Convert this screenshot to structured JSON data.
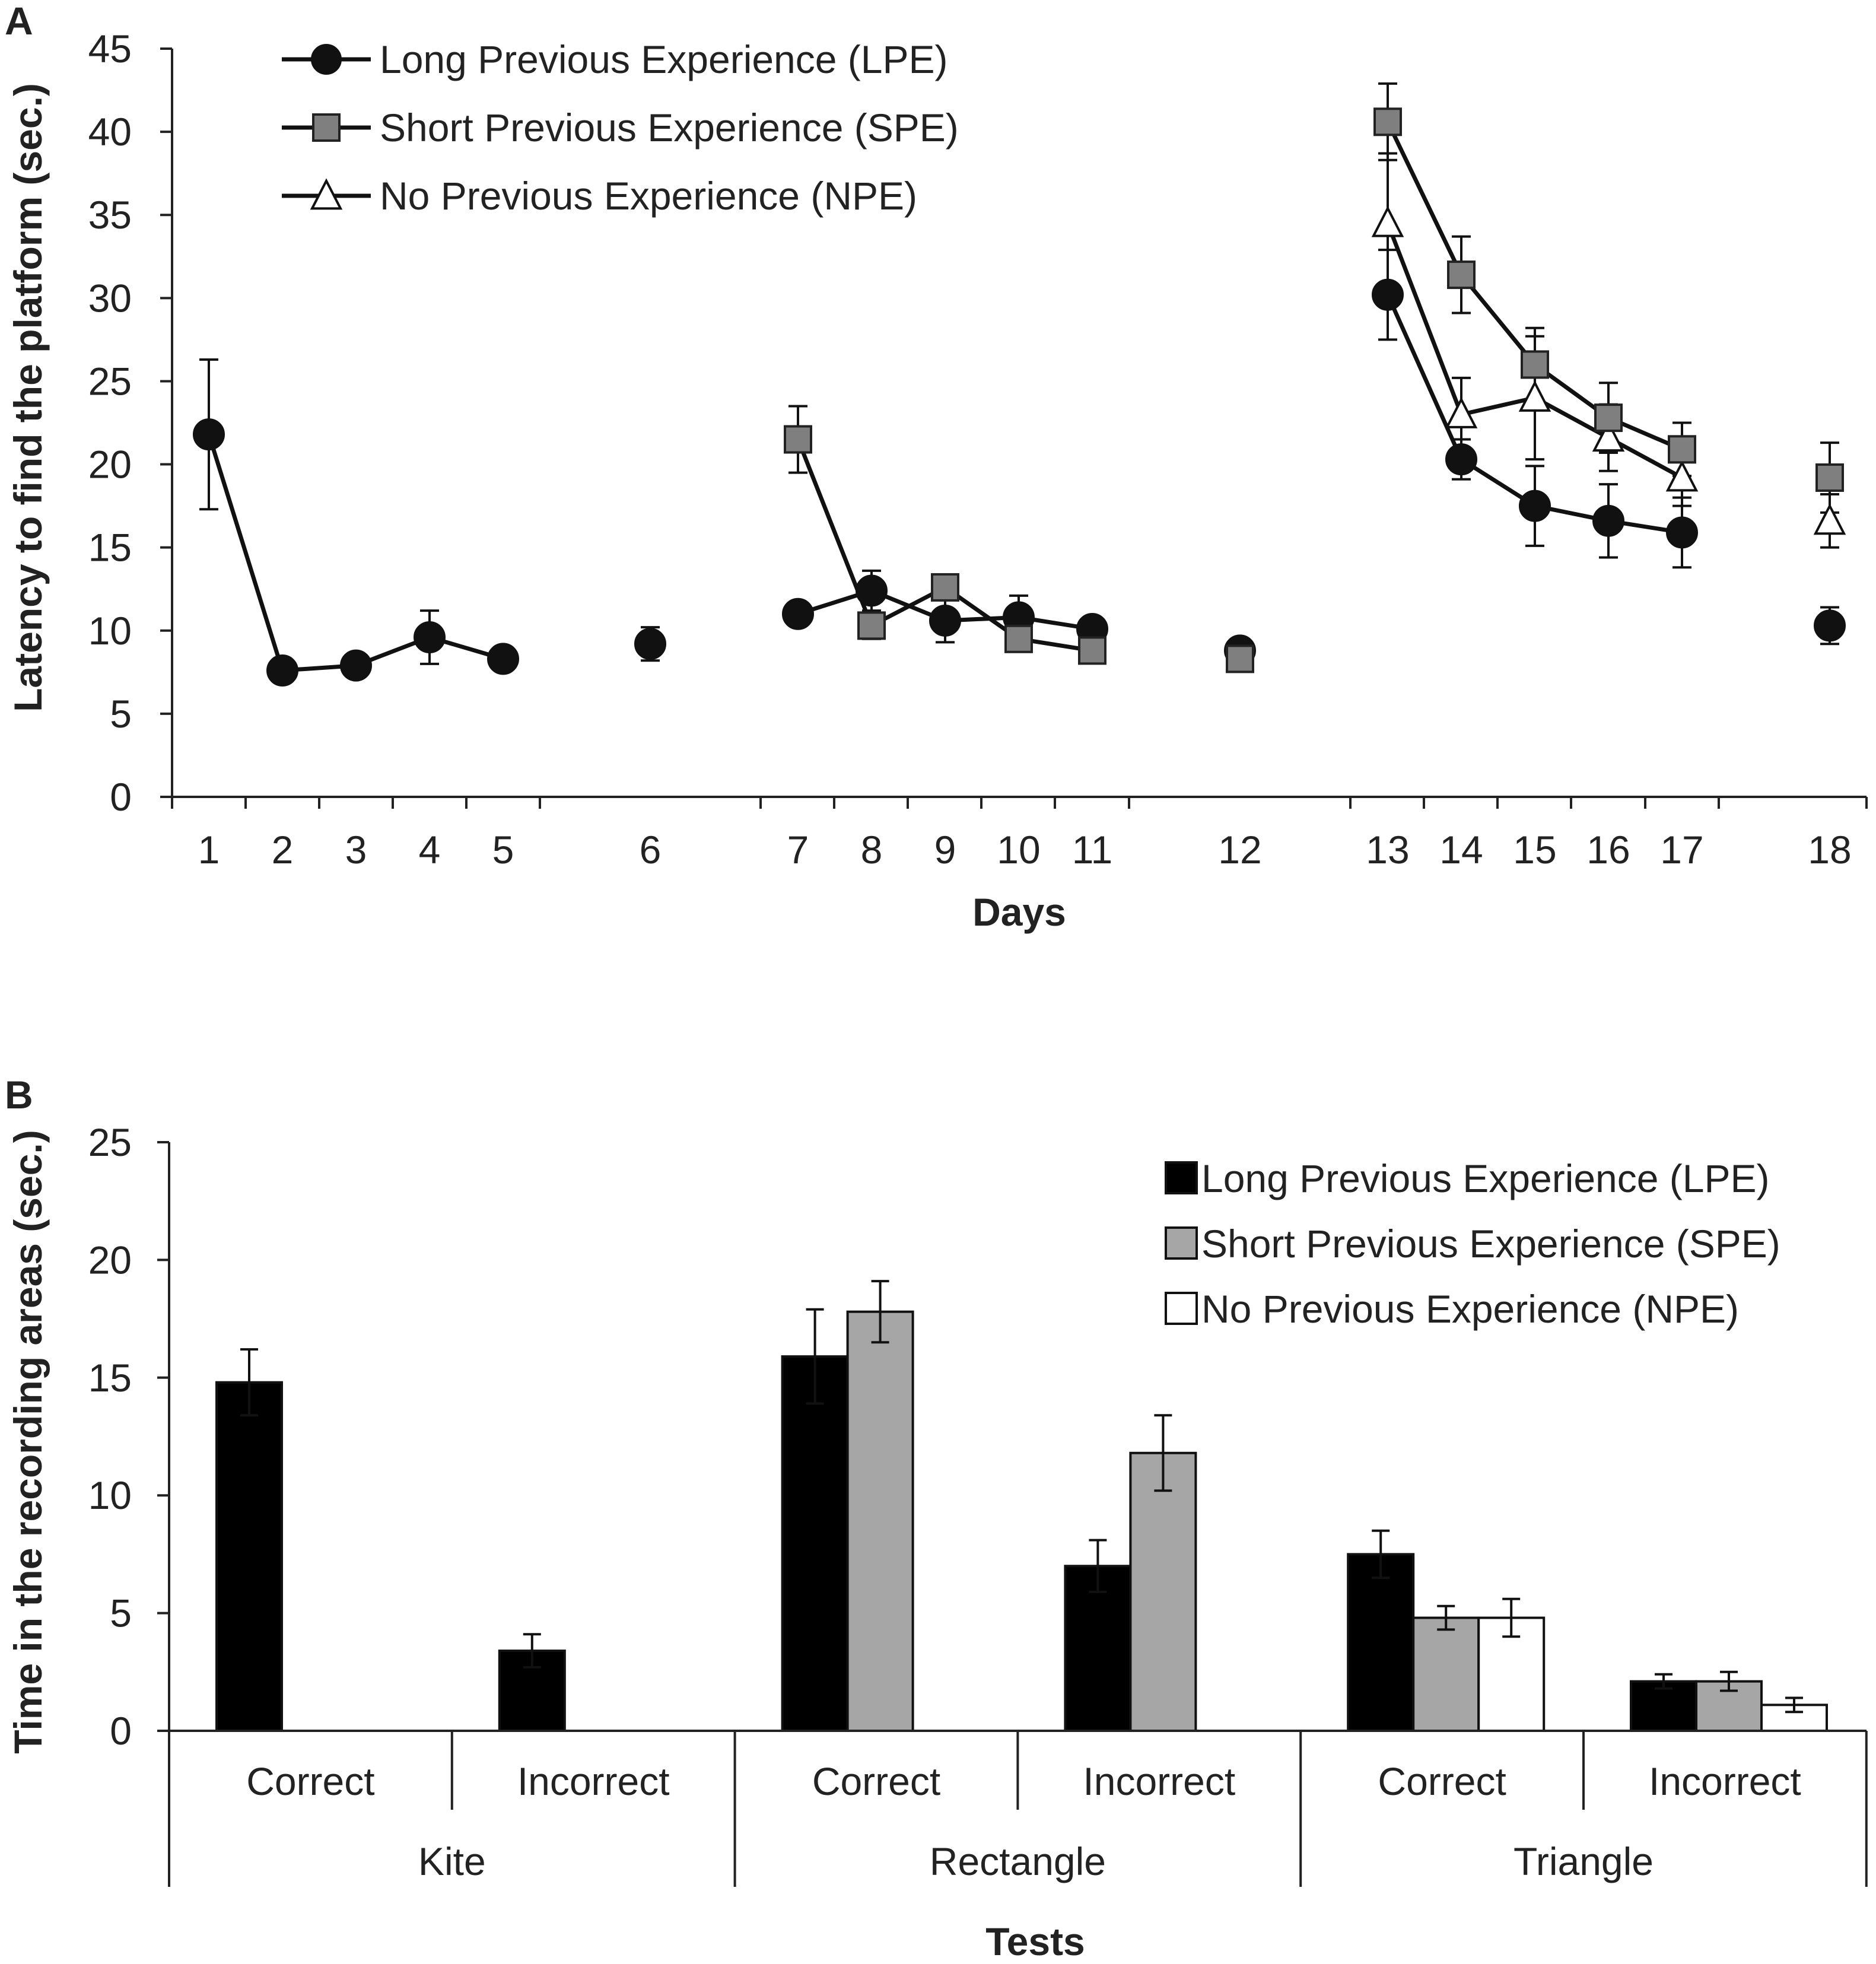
{
  "chart_data": [
    {
      "panel": "A",
      "type": "line",
      "xlabel": "Days",
      "ylabel": "Latency to find the platform (sec.)",
      "ylim": [
        0,
        45
      ],
      "yticks": [
        "0",
        "5",
        "10",
        "15",
        "20",
        "25",
        "30",
        "35",
        "40",
        "45"
      ],
      "x_ticks": [
        1,
        2,
        3,
        4,
        5,
        6,
        7,
        8,
        9,
        10,
        11,
        12,
        13,
        14,
        15,
        16,
        17,
        18
      ],
      "x_tick_labels": [
        "1",
        "2",
        "3",
        "4",
        "5",
        "6",
        "7",
        "8",
        "9",
        "10",
        "11",
        "12",
        "13",
        "14",
        "15",
        "16",
        "17",
        "18"
      ],
      "legend": {
        "placement": "top-left"
      },
      "series": [
        {
          "name": "Long Previous Experience (LPE)",
          "marker": "circle",
          "color": "#111111",
          "segments": [
            [
              [
                1,
                21.8,
                4.5
              ],
              [
                2,
                7.6,
                0.3
              ],
              [
                3,
                7.9,
                0.4
              ],
              [
                4,
                9.6,
                1.6
              ],
              [
                5,
                8.3,
                0.4
              ]
            ],
            [
              [
                6,
                9.2,
                1.0
              ]
            ],
            [
              [
                7,
                11.0,
                0.4
              ],
              [
                8,
                12.4,
                1.2
              ],
              [
                9,
                10.6,
                1.3
              ],
              [
                10,
                10.8,
                1.3
              ],
              [
                11,
                10.1,
                0.5
              ]
            ],
            [
              [
                12,
                8.8,
                0.6
              ]
            ],
            [
              [
                13,
                30.2,
                2.7
              ],
              [
                14,
                20.3,
                1.2
              ],
              [
                15,
                17.5,
                2.4
              ],
              [
                16,
                16.6,
                2.2
              ],
              [
                17,
                15.9,
                2.1
              ]
            ],
            [
              [
                18,
                10.3,
                1.1
              ]
            ]
          ]
        },
        {
          "name": "Short Previous Experience (SPE)",
          "marker": "square",
          "color": "#7f7f7f",
          "segments": [
            [
              [
                7,
                21.5,
                2.0
              ],
              [
                8,
                10.3,
                0.8
              ],
              [
                9,
                12.6,
                0.5
              ],
              [
                10,
                9.5,
                0.5
              ],
              [
                11,
                8.8,
                0.5
              ]
            ],
            [
              [
                12,
                8.3,
                0.4
              ]
            ],
            [
              [
                13,
                40.6,
                2.3
              ],
              [
                14,
                31.4,
                2.3
              ],
              [
                15,
                26.0,
                2.2
              ],
              [
                16,
                22.8,
                2.1
              ],
              [
                17,
                20.9,
                1.6
              ]
            ],
            [
              [
                18,
                19.2,
                2.1
              ]
            ]
          ]
        },
        {
          "name": "No Previous Experience (NPE)",
          "marker": "triangle",
          "color": "#ffffff",
          "segments": [
            [
              [
                13,
                34.5,
                4.2
              ],
              [
                14,
                23.0,
                2.2
              ],
              [
                15,
                24.0,
                3.7
              ],
              [
                16,
                21.6,
                2.0
              ],
              [
                17,
                19.2,
                1.7
              ]
            ],
            [
              [
                18,
                16.6,
                1.6
              ]
            ]
          ]
        }
      ]
    },
    {
      "panel": "B",
      "type": "bar",
      "xlabel": "Tests",
      "ylabel": "Time in the recording areas (sec.)",
      "ylim": [
        0,
        25
      ],
      "yticks": [
        "0",
        "5",
        "10",
        "15",
        "20",
        "25"
      ],
      "groups": [
        "Kite",
        "Rectangle",
        "Triangle"
      ],
      "categories": [
        "Correct",
        "Incorrect",
        "Correct",
        "Incorrect",
        "Correct",
        "Incorrect"
      ],
      "legend": {
        "placement": "top-right"
      },
      "series": [
        {
          "name": "Long Previous Experience (LPE)",
          "color": "#000000",
          "values": [
            14.8,
            3.4,
            15.9,
            7.0,
            7.5,
            2.1
          ],
          "errors": [
            1.4,
            0.7,
            2.0,
            1.1,
            1.0,
            0.3
          ]
        },
        {
          "name": "Short Previous Experience (SPE)",
          "color": "#a6a6a6",
          "values": [
            null,
            null,
            17.8,
            11.8,
            4.8,
            2.1
          ],
          "errors": [
            null,
            null,
            1.3,
            1.6,
            0.5,
            0.4
          ]
        },
        {
          "name": "No Previous Experience (NPE)",
          "color": "#ffffff",
          "values": [
            null,
            null,
            null,
            null,
            4.8,
            1.1
          ],
          "errors": [
            null,
            null,
            null,
            null,
            0.8,
            0.3
          ]
        }
      ]
    }
  ]
}
